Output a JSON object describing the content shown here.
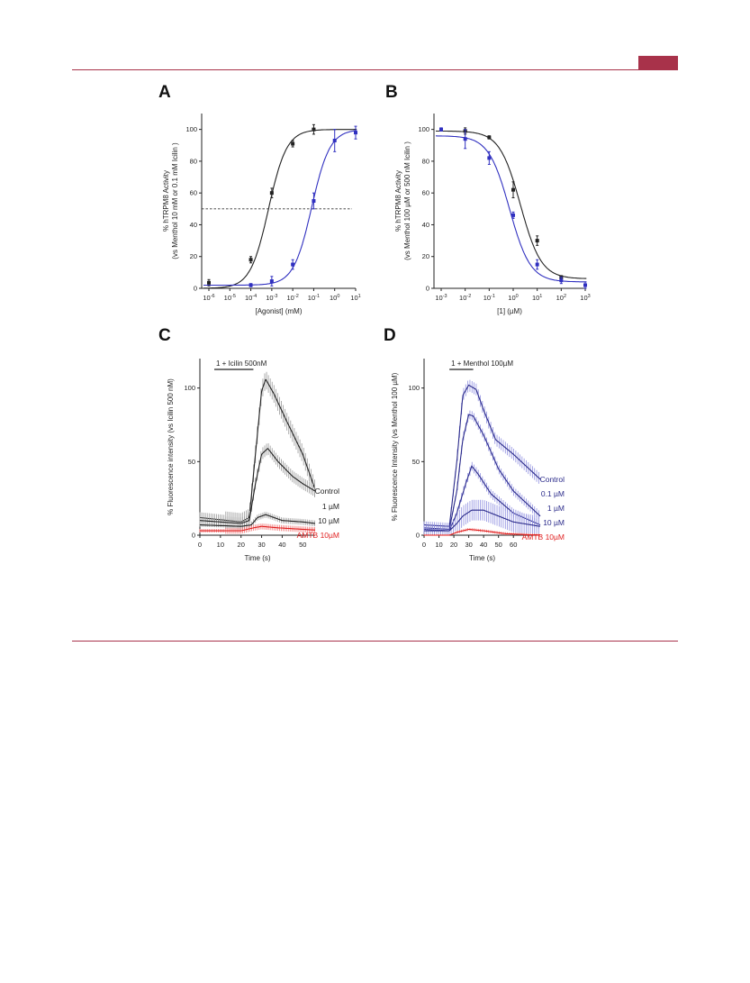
{
  "colors": {
    "accent": "#a8324a",
    "black": "#222222",
    "blue": "#3030c0",
    "red": "#e02020",
    "navy": "#2a2a8a"
  },
  "chart_data": [
    {
      "id": "A",
      "letter": "A",
      "type": "scatter",
      "xscale": "log",
      "xlabel": "[Agonist] (mM)",
      "ylabel": [
        "% hTRPM8 Activity",
        "(vs Menthol 10 mM or 0.1 mM Icilin )"
      ],
      "xlim": [
        1e-06,
        10
      ],
      "ylim": [
        0,
        110
      ],
      "yticks": [
        0,
        20,
        40,
        60,
        80,
        100
      ],
      "xtick_exps": [
        -6,
        -5,
        -4,
        -3,
        -2,
        -1,
        0,
        1
      ],
      "reference_line": 50,
      "series": [
        {
          "color": "black",
          "fit": {
            "bottom": 0,
            "top": 100,
            "ec50": 0.0007,
            "hill": 1
          },
          "points": [
            {
              "x": 1e-06,
              "y": 3.5,
              "e": 2
            },
            {
              "x": 0.0001,
              "y": 18,
              "e": 2
            },
            {
              "x": 0.001,
              "y": 60,
              "e": 3
            },
            {
              "x": 0.01,
              "y": 91,
              "e": 2
            },
            {
              "x": 0.1,
              "y": 100,
              "e": 3
            }
          ]
        },
        {
          "color": "blue",
          "fit": {
            "bottom": 2,
            "top": 100,
            "ec50": 0.08,
            "hill": 1
          },
          "points": [
            {
              "x": 0.0001,
              "y": 2,
              "e": 1
            },
            {
              "x": 0.001,
              "y": 4.5,
              "e": 3
            },
            {
              "x": 0.01,
              "y": 15,
              "e": 3
            },
            {
              "x": 0.1,
              "y": 55,
              "e": 5
            },
            {
              "x": 1,
              "y": 93,
              "e": 7
            },
            {
              "x": 10,
              "y": 98,
              "e": 4
            }
          ]
        }
      ]
    },
    {
      "id": "B",
      "letter": "B",
      "type": "scatter",
      "xscale": "log",
      "xlabel": "[1] (µM)",
      "ylabel": [
        "% hTRPM8 Activity",
        "(vs Menthol 100 µM or 500 nM Icilin )"
      ],
      "xlim": [
        0.001,
        1000
      ],
      "ylim": [
        0,
        110
      ],
      "yticks": [
        0,
        20,
        40,
        60,
        80,
        100
      ],
      "xtick_exps": [
        -3,
        -2,
        -1,
        0,
        1,
        2,
        3
      ],
      "series": [
        {
          "color": "black",
          "fit": {
            "bottom": 6,
            "top": 99,
            "ic50": 2.0,
            "hill": 1
          },
          "points": [
            {
              "x": 0.01,
              "y": 99,
              "e": 2
            },
            {
              "x": 0.1,
              "y": 95,
              "e": 1
            },
            {
              "x": 1,
              "y": 62,
              "e": 5
            },
            {
              "x": 10,
              "y": 30,
              "e": 3
            },
            {
              "x": 100,
              "y": 7,
              "e": 1
            }
          ]
        },
        {
          "color": "blue",
          "fit": {
            "bottom": 4,
            "top": 96,
            "ic50": 0.7,
            "hill": 1
          },
          "points": [
            {
              "x": 0.001,
              "y": 100,
              "e": 1
            },
            {
              "x": 0.01,
              "y": 94,
              "e": 6
            },
            {
              "x": 0.1,
              "y": 82,
              "e": 4
            },
            {
              "x": 1,
              "y": 46,
              "e": 2
            },
            {
              "x": 10,
              "y": 15,
              "e": 3
            },
            {
              "x": 100,
              "y": 5,
              "e": 2
            },
            {
              "x": 1000,
              "y": 2,
              "e": 2
            }
          ]
        }
      ]
    },
    {
      "id": "C",
      "letter": "C",
      "type": "line",
      "xlabel": "Time (s)",
      "ylabel": "% Fluorescence intensity (vs Icilin 500 nM)",
      "xlim": [
        0,
        56
      ],
      "ylim": [
        0,
        120
      ],
      "xticks": [
        0,
        10,
        20,
        30,
        40,
        50
      ],
      "yticks": [
        0,
        50,
        100
      ],
      "bar_label": "1 + Icilin 500nM",
      "bar_range": [
        7,
        26
      ],
      "legend": [
        {
          "label": "Control",
          "color": "black"
        },
        {
          "label": "1 µM",
          "color": "black"
        },
        {
          "label": "10 µM",
          "color": "black"
        },
        {
          "label": "AMTB 10µM",
          "color": "red"
        }
      ],
      "series": [
        {
          "label": "Control",
          "color": "black",
          "err": 6,
          "pts": [
            [
              0,
              12
            ],
            [
              20,
              9
            ],
            [
              24,
              12
            ],
            [
              27,
              55
            ],
            [
              30,
              98
            ],
            [
              32,
              106
            ],
            [
              36,
              96
            ],
            [
              42,
              78
            ],
            [
              50,
              55
            ],
            [
              56,
              31
            ]
          ]
        },
        {
          "label": "1 µM",
          "color": "black",
          "err": 4,
          "pts": [
            [
              0,
              10
            ],
            [
              20,
              8
            ],
            [
              24,
              10
            ],
            [
              27,
              35
            ],
            [
              30,
              55
            ],
            [
              33,
              59
            ],
            [
              38,
              50
            ],
            [
              45,
              40
            ],
            [
              50,
              35
            ],
            [
              56,
              30
            ]
          ]
        },
        {
          "label": "10 µM",
          "color": "black",
          "err": 2,
          "pts": [
            [
              0,
              7
            ],
            [
              20,
              6
            ],
            [
              25,
              7
            ],
            [
              28,
              12
            ],
            [
              32,
              14
            ],
            [
              40,
              10
            ],
            [
              50,
              9
            ],
            [
              56,
              8
            ]
          ]
        },
        {
          "label": "AMTB 10µM",
          "color": "red",
          "err": 2,
          "pts": [
            [
              0,
              3
            ],
            [
              20,
              3
            ],
            [
              26,
              5
            ],
            [
              30,
              6
            ],
            [
              38,
              5
            ],
            [
              50,
              4
            ],
            [
              56,
              3.5
            ]
          ]
        }
      ]
    },
    {
      "id": "D",
      "letter": "D",
      "type": "line",
      "xlabel": "Time (s)",
      "ylabel": "% Fluorescence Intensity (vs Menthol 100 µM)",
      "xlim": [
        0,
        78
      ],
      "ylim": [
        0,
        120
      ],
      "xticks": [
        0,
        20,
        40,
        60
      ],
      "minor_xticks": [
        10,
        30,
        50
      ],
      "yticks": [
        0,
        50,
        100
      ],
      "bar_label": "1 + Menthol 100µM",
      "bar_range": [
        17,
        33
      ],
      "legend": [
        {
          "label": "Control",
          "color": "navy"
        },
        {
          "label": "0.1 µM",
          "color": "navy"
        },
        {
          "label": "1 µM",
          "color": "navy"
        },
        {
          "label": "10 µM",
          "color": "navy"
        },
        {
          "label": "AMTB 10µM",
          "color": "red"
        }
      ],
      "series": [
        {
          "label": "Control",
          "color": "navy",
          "err": 4,
          "pts": [
            [
              0,
              7
            ],
            [
              17,
              6
            ],
            [
              22,
              50
            ],
            [
              26,
              95
            ],
            [
              30,
              102
            ],
            [
              35,
              99
            ],
            [
              40,
              85
            ],
            [
              48,
              65
            ],
            [
              60,
              55
            ],
            [
              78,
              38
            ]
          ]
        },
        {
          "label": "0.1 µM",
          "color": "navy",
          "err": 3,
          "pts": [
            [
              0,
              5
            ],
            [
              17,
              4
            ],
            [
              22,
              30
            ],
            [
              26,
              65
            ],
            [
              30,
              82
            ],
            [
              33,
              81
            ],
            [
              40,
              68
            ],
            [
              50,
              45
            ],
            [
              60,
              30
            ],
            [
              78,
              13
            ]
          ]
        },
        {
          "label": "1 µM",
          "color": "navy",
          "err": 3,
          "pts": [
            [
              0,
              4
            ],
            [
              17,
              3
            ],
            [
              22,
              15
            ],
            [
              28,
              35
            ],
            [
              32,
              47
            ],
            [
              36,
              42
            ],
            [
              45,
              28
            ],
            [
              60,
              15
            ],
            [
              78,
              7
            ]
          ]
        },
        {
          "label": "10 µM",
          "color": "navy",
          "err": 7,
          "pts": [
            [
              0,
              3
            ],
            [
              17,
              3
            ],
            [
              22,
              8
            ],
            [
              26,
              13
            ],
            [
              32,
              17
            ],
            [
              40,
              17
            ],
            [
              50,
              13
            ],
            [
              60,
              9
            ],
            [
              78,
              6
            ]
          ]
        },
        {
          "label": "AMTB 10µM",
          "color": "red",
          "err": 1,
          "pts": [
            [
              0,
              0
            ],
            [
              17,
              0
            ],
            [
              22,
              2
            ],
            [
              30,
              4
            ],
            [
              40,
              3
            ],
            [
              55,
              1
            ],
            [
              78,
              0
            ]
          ]
        }
      ]
    }
  ]
}
